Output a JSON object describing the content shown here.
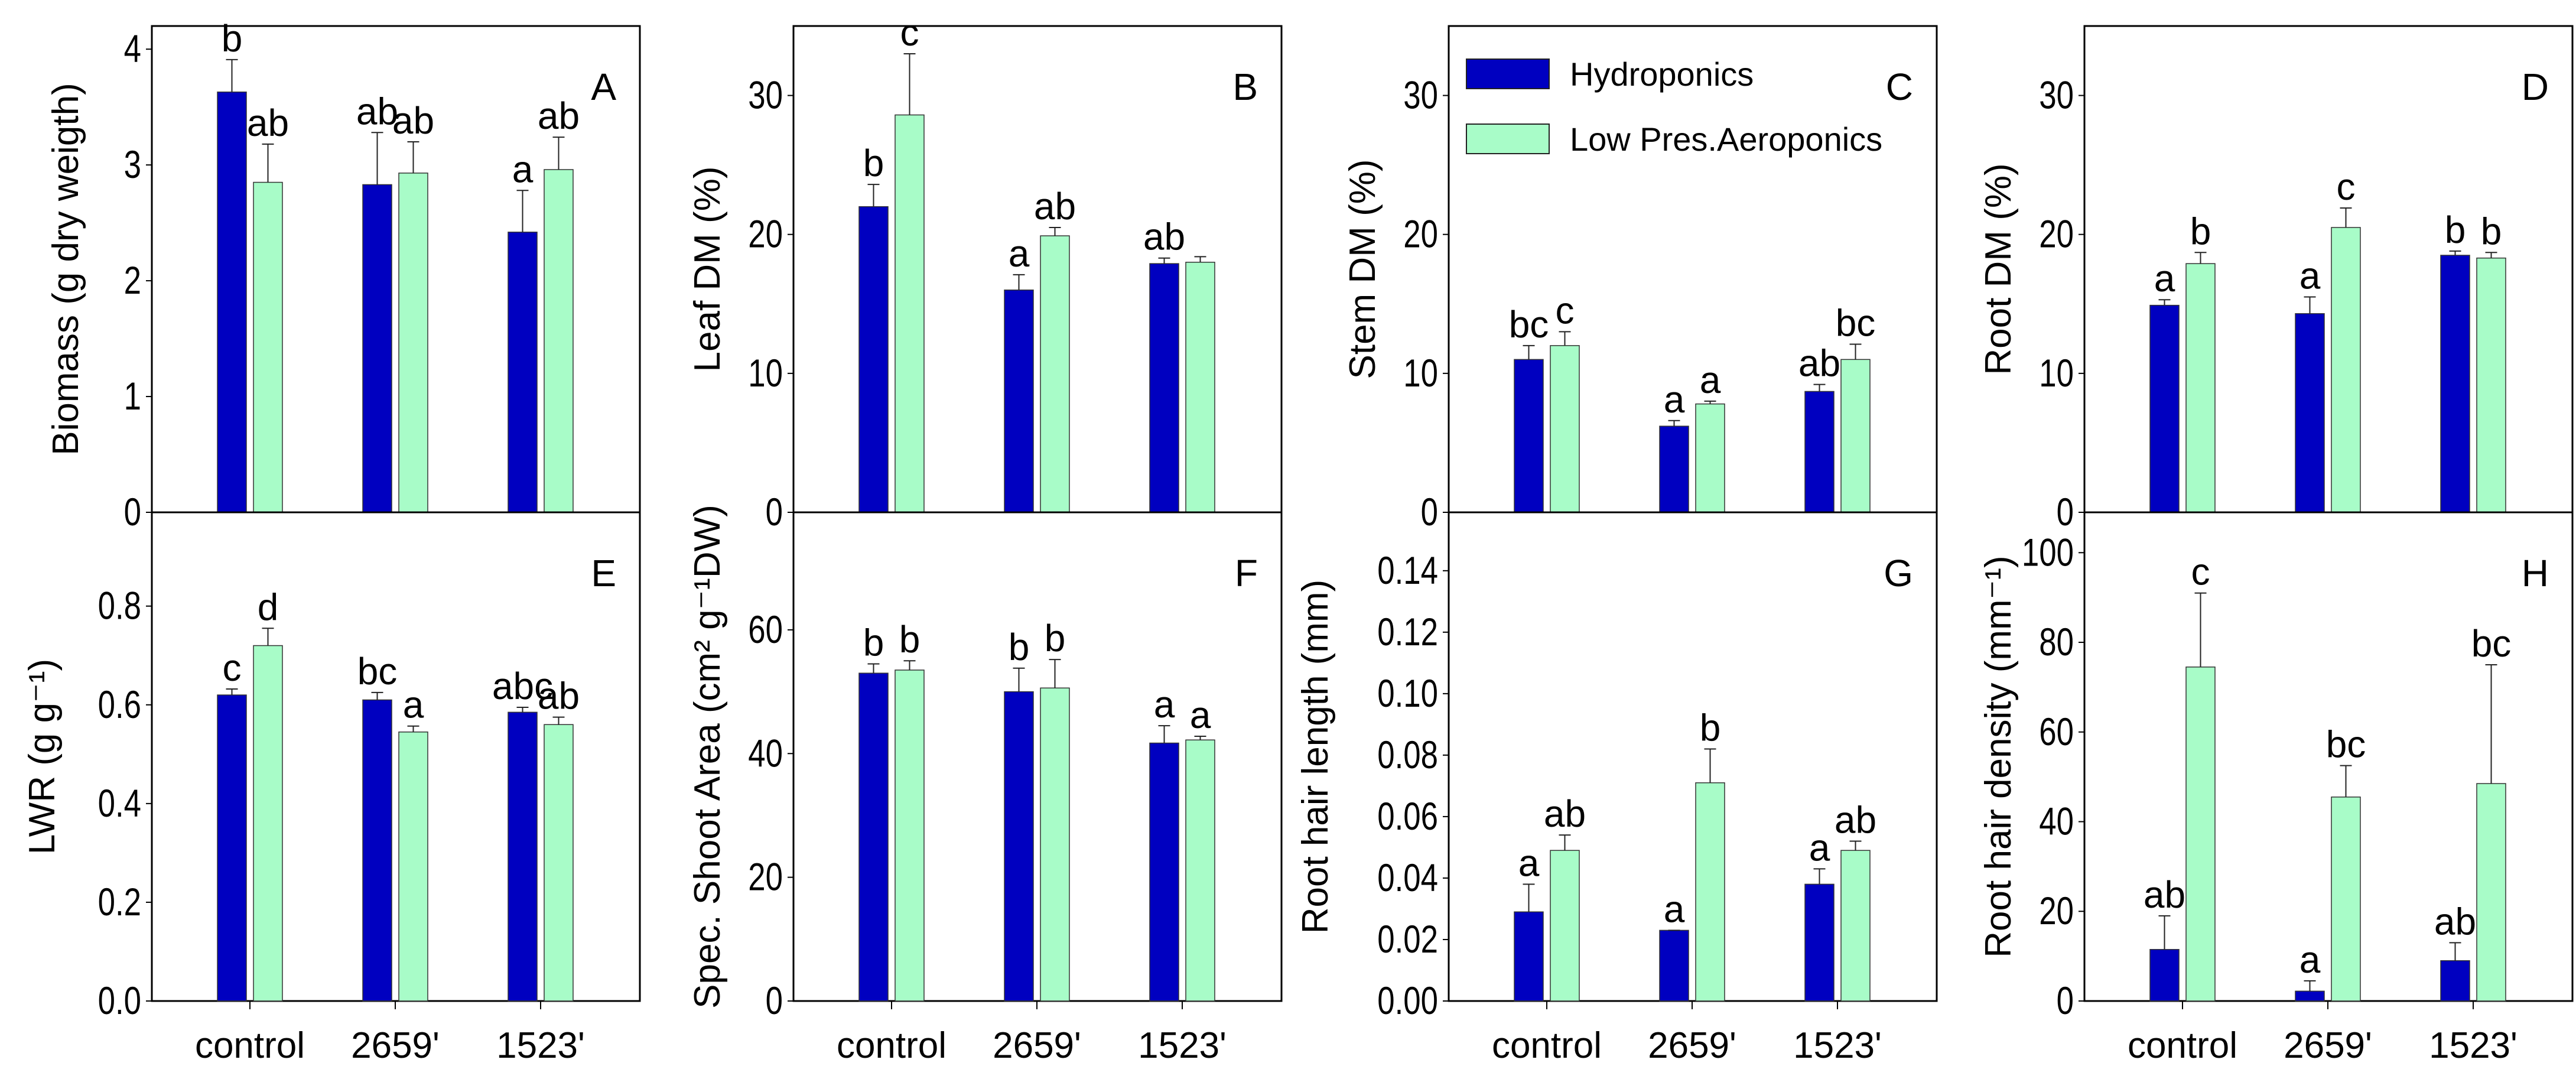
{
  "colors": {
    "hydroponics": "#0000C0",
    "aeroponics": "#A8FCC8",
    "axis": "#000000"
  },
  "chart_data": {
    "type": "bar",
    "categories": [
      "control",
      "2659'",
      "1523'"
    ],
    "legend": {
      "placement": "top-left of panel C",
      "entries": [
        "Hydroponics",
        "Low Pres.Aeroponics"
      ]
    },
    "panels": [
      {
        "letter": "A",
        "ylabel": "Biomass (g dry weigth)",
        "ylim": [
          0,
          4.2
        ],
        "ticks": [
          0,
          1,
          2,
          3,
          4
        ],
        "decimals": 0,
        "series": [
          {
            "name": "Hydroponics",
            "values": [
              3.63,
              2.83,
              2.42
            ],
            "err": [
              0.28,
              0.45,
              0.36
            ],
            "letters": [
              "b",
              "ab",
              "a"
            ]
          },
          {
            "name": "Low Pres.Aeroponics",
            "values": [
              2.85,
              2.93,
              2.96
            ],
            "err": [
              0.33,
              0.27,
              0.28
            ],
            "letters": [
              "ab",
              "ab",
              "ab"
            ]
          }
        ]
      },
      {
        "letter": "B",
        "ylabel": "Leaf DM (%)",
        "ylim": [
          0,
          35
        ],
        "ticks": [
          0,
          10,
          20,
          30
        ],
        "decimals": 0,
        "series": [
          {
            "name": "Hydroponics",
            "values": [
              22.0,
              16.0,
              17.9
            ],
            "err": [
              1.6,
              1.1,
              0.4
            ],
            "letters": [
              "b",
              "a",
              "ab"
            ]
          },
          {
            "name": "Low Pres.Aeroponics",
            "values": [
              28.6,
              19.9,
              18.0
            ],
            "err": [
              4.4,
              0.6,
              0.4
            ],
            "letters": [
              "c",
              "ab",
              ""
            ]
          }
        ]
      },
      {
        "letter": "C",
        "ylabel": "Stem DM (%)",
        "ylim": [
          0,
          35
        ],
        "ticks": [
          0,
          10,
          20,
          30
        ],
        "decimals": 0,
        "series": [
          {
            "name": "Hydroponics",
            "values": [
              11.0,
              6.2,
              8.7
            ],
            "err": [
              1.0,
              0.4,
              0.5
            ],
            "letters": [
              "bc",
              "a",
              "ab"
            ]
          },
          {
            "name": "Low Pres.Aeroponics",
            "values": [
              12.0,
              7.8,
              11.0
            ],
            "err": [
              1.0,
              0.2,
              1.1
            ],
            "letters": [
              "c",
              "a",
              "bc"
            ]
          }
        ]
      },
      {
        "letter": "D",
        "ylabel": "Root DM  (%)",
        "ylim": [
          0,
          35
        ],
        "ticks": [
          0,
          10,
          20,
          30
        ],
        "decimals": 0,
        "series": [
          {
            "name": "Hydroponics",
            "values": [
              14.9,
              14.3,
              18.5
            ],
            "err": [
              0.4,
              1.2,
              0.3
            ],
            "letters": [
              "a",
              "a",
              "b"
            ]
          },
          {
            "name": "Low Pres.Aeroponics",
            "values": [
              17.9,
              20.5,
              18.3
            ],
            "err": [
              0.8,
              1.4,
              0.4
            ],
            "letters": [
              "b",
              "c",
              "b"
            ]
          }
        ]
      },
      {
        "letter": "E",
        "ylabel": "LWR (g g⁻¹)",
        "ylim": [
          0,
          0.99
        ],
        "ticks": [
          0,
          0.2,
          0.4,
          0.6,
          0.8
        ],
        "decimals": 1,
        "series": [
          {
            "name": "Hydroponics",
            "values": [
              0.62,
              0.61,
              0.585
            ],
            "err": [
              0.012,
              0.015,
              0.01
            ],
            "letters": [
              "c",
              "bc",
              "abc"
            ]
          },
          {
            "name": "Low Pres.Aeroponics",
            "values": [
              0.72,
              0.545,
              0.56
            ],
            "err": [
              0.035,
              0.012,
              0.015
            ],
            "letters": [
              "d",
              "a",
              "ab"
            ]
          }
        ]
      },
      {
        "letter": "F",
        "ylabel": "Spec. Shoot Area (cm² g⁻¹DW)",
        "ylim": [
          0,
          79
        ],
        "ticks": [
          0,
          20,
          40,
          60
        ],
        "decimals": 0,
        "series": [
          {
            "name": "Hydroponics",
            "values": [
              53.0,
              50.0,
              41.7
            ],
            "err": [
              1.5,
              3.8,
              2.8
            ],
            "letters": [
              "b",
              "b",
              "a"
            ]
          },
          {
            "name": "Low Pres.Aeroponics",
            "values": [
              53.5,
              50.6,
              42.2
            ],
            "err": [
              1.5,
              4.6,
              0.6
            ],
            "letters": [
              "b",
              "b",
              "a"
            ]
          }
        ]
      },
      {
        "letter": "G",
        "ylabel": "Root hair length (mm)",
        "ylim": [
          0,
          0.159
        ],
        "ticks": [
          0,
          0.02,
          0.04,
          0.06,
          0.08,
          0.1,
          0.12,
          0.14
        ],
        "decimals": 2,
        "series": [
          {
            "name": "Hydroponics",
            "values": [
              0.029,
              0.023,
              0.038
            ],
            "err": [
              0.009,
              0.0,
              0.005
            ],
            "letters": [
              "a",
              "a",
              "a"
            ]
          },
          {
            "name": "Low Pres.Aeroponics",
            "values": [
              0.049,
              0.071,
              0.049
            ],
            "err": [
              0.005,
              0.011,
              0.003
            ],
            "letters": [
              "ab",
              "b",
              "ab"
            ]
          }
        ]
      },
      {
        "letter": "H",
        "ylabel": "Root hair density  (mm⁻¹)",
        "ylim": [
          0,
          109
        ],
        "ticks": [
          0,
          20,
          40,
          60,
          80,
          100
        ],
        "decimals": 0,
        "series": [
          {
            "name": "Hydroponics",
            "values": [
              11.5,
              2.2,
              9.0
            ],
            "err": [
              7.5,
              2.3,
              4.0
            ],
            "letters": [
              "ab",
              "a",
              "ab"
            ]
          },
          {
            "name": "Low Pres.Aeroponics",
            "values": [
              74.5,
              45.5,
              48.5
            ],
            "err": [
              16.5,
              7.0,
              26.5
            ],
            "letters": [
              "c",
              "bc",
              "bc"
            ]
          }
        ]
      }
    ]
  }
}
